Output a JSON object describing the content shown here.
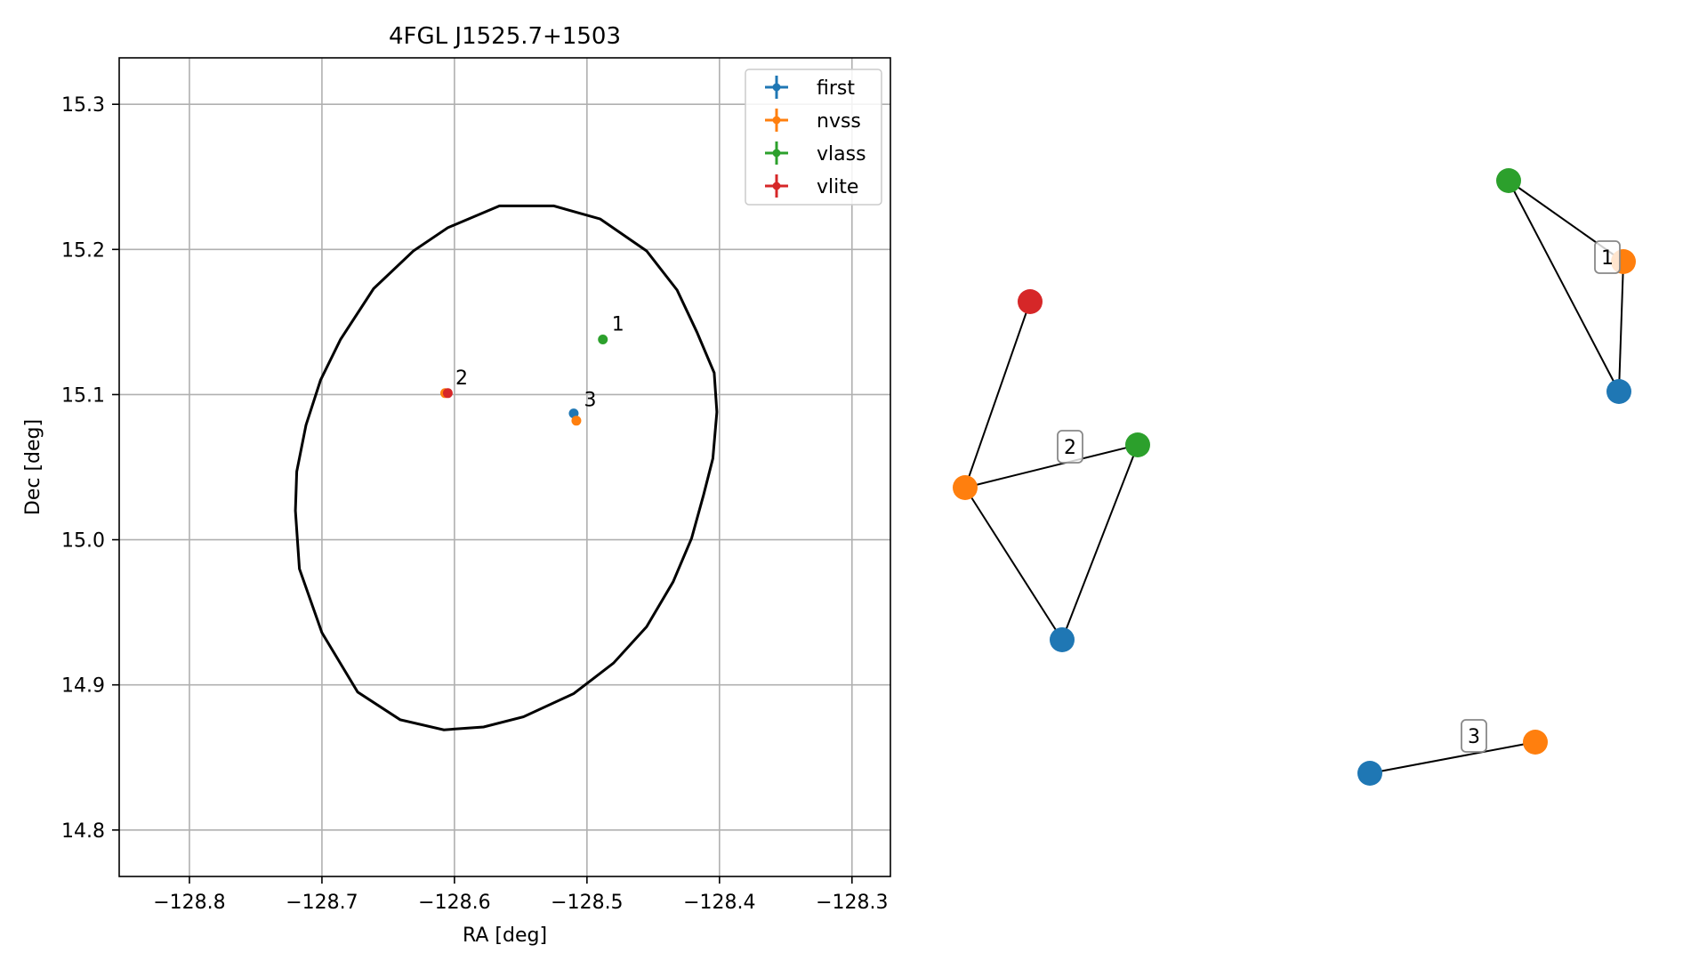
{
  "chart_data": [
    {
      "type": "scatter",
      "title": "4FGL J1525.7+1503",
      "xlabel": "RA [deg]",
      "ylabel": "Dec [deg]",
      "xlim": [
        -128.853,
        -128.271
      ],
      "ylim": [
        14.768,
        15.332
      ],
      "x_ticks": [
        -128.8,
        -128.7,
        -128.6,
        -128.5,
        -128.4,
        -128.3
      ],
      "x_tick_labels": [
        "−128.8",
        "−128.7",
        "−128.6",
        "−128.5",
        "−128.4",
        "−128.3"
      ],
      "y_ticks": [
        14.8,
        14.9,
        15.0,
        15.1,
        15.2,
        15.3
      ],
      "y_tick_labels": [
        "14.8",
        "14.9",
        "15.0",
        "15.1",
        "15.2",
        "15.3"
      ],
      "grid": true,
      "legend_position": "top-right",
      "series": [
        {
          "name": "first",
          "color": "#1f77b4",
          "points": [
            [
              -128.51,
              15.087
            ]
          ]
        },
        {
          "name": "nvss",
          "color": "#ff7f0e",
          "points": [
            [
              -128.607,
              15.101
            ],
            [
              -128.508,
              15.082
            ]
          ]
        },
        {
          "name": "vlass",
          "color": "#2ca02c",
          "points": [
            [
              -128.488,
              15.138
            ]
          ]
        },
        {
          "name": "vlite",
          "color": "#d62728",
          "points": [
            [
              -128.605,
              15.101
            ]
          ]
        }
      ],
      "annotations": [
        {
          "text": "1",
          "x": -128.488,
          "y": 15.138
        },
        {
          "text": "2",
          "x": -128.606,
          "y": 15.101
        },
        {
          "text": "3",
          "x": -128.509,
          "y": 15.086
        }
      ],
      "ellipse": {
        "color": "#000000",
        "center": [
          -128.563,
          15.05
        ],
        "outline": [
          [
            -128.72,
            15.02
          ],
          [
            -128.719,
            15.047
          ],
          [
            -128.712,
            15.079
          ],
          [
            -128.701,
            15.11
          ],
          [
            -128.686,
            15.138
          ],
          [
            -128.661,
            15.173
          ],
          [
            -128.631,
            15.199
          ],
          [
            -128.605,
            15.215
          ],
          [
            -128.566,
            15.23
          ],
          [
            -128.525,
            15.23
          ],
          [
            -128.49,
            15.221
          ],
          [
            -128.455,
            15.199
          ],
          [
            -128.432,
            15.172
          ],
          [
            -128.417,
            15.143
          ],
          [
            -128.404,
            15.115
          ],
          [
            -128.402,
            15.088
          ],
          [
            -128.405,
            15.056
          ],
          [
            -128.412,
            15.031
          ],
          [
            -128.421,
            15.001
          ],
          [
            -128.435,
            14.971
          ],
          [
            -128.455,
            14.94
          ],
          [
            -128.48,
            14.915
          ],
          [
            -128.51,
            14.894
          ],
          [
            -128.548,
            14.878
          ],
          [
            -128.578,
            14.871
          ],
          [
            -128.608,
            14.869
          ],
          [
            -128.641,
            14.876
          ],
          [
            -128.673,
            14.895
          ],
          [
            -128.7,
            14.936
          ],
          [
            -128.717,
            14.98
          ],
          [
            -128.72,
            15.02
          ]
        ]
      }
    },
    {
      "type": "network",
      "groups": [
        {
          "label": "1",
          "nodes": [
            {
              "id": "vlass",
              "color": "#2ca02c"
            },
            {
              "id": "nvss",
              "color": "#ff7f0e"
            },
            {
              "id": "first",
              "color": "#1f77b4"
            }
          ],
          "edges": [
            [
              "vlass",
              "nvss"
            ],
            [
              "vlass",
              "first"
            ],
            [
              "nvss",
              "first"
            ]
          ]
        },
        {
          "label": "2",
          "nodes": [
            {
              "id": "vlite",
              "color": "#d62728"
            },
            {
              "id": "nvss",
              "color": "#ff7f0e"
            },
            {
              "id": "vlass",
              "color": "#2ca02c"
            },
            {
              "id": "first",
              "color": "#1f77b4"
            }
          ],
          "edges": [
            [
              "vlite",
              "nvss"
            ],
            [
              "nvss",
              "vlass"
            ],
            [
              "nvss",
              "first"
            ],
            [
              "first",
              "vlass"
            ]
          ]
        },
        {
          "label": "3",
          "nodes": [
            {
              "id": "first",
              "color": "#1f77b4"
            },
            {
              "id": "nvss",
              "color": "#ff7f0e"
            }
          ],
          "edges": [
            [
              "first",
              "nvss"
            ]
          ]
        }
      ]
    }
  ]
}
